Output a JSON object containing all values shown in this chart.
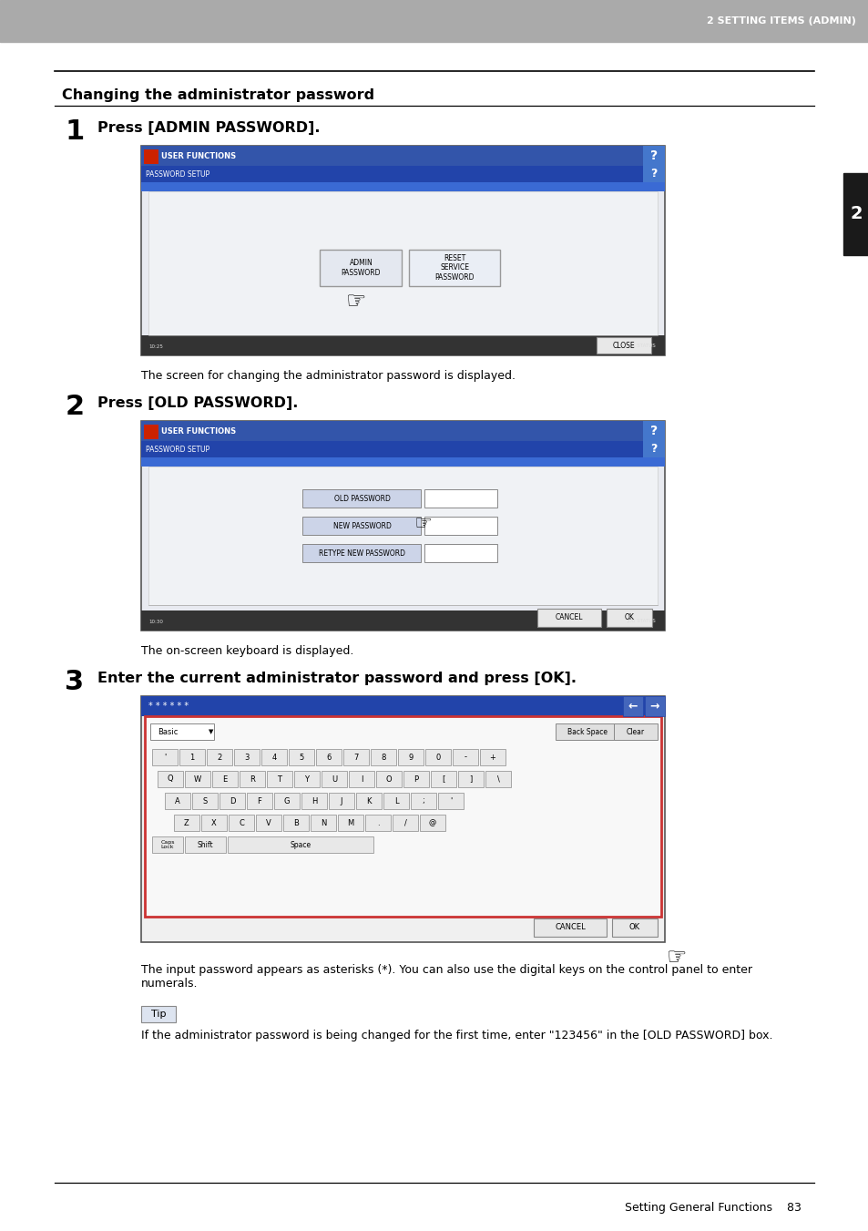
{
  "page_bg": "#ffffff",
  "header_bg": "#aaaaaa",
  "header_text": "2 SETTING ITEMS (ADMIN)",
  "header_text_color": "#ffffff",
  "sidebar_bg": "#1a1a1a",
  "sidebar_text": "2",
  "sidebar_text_color": "#ffffff",
  "title": "Changing the administrator password",
  "steps": [
    {
      "number": "1",
      "instruction": "Press [ADMIN PASSWORD].",
      "caption": "The screen for changing the administrator password is displayed."
    },
    {
      "number": "2",
      "instruction": "Press [OLD PASSWORD].",
      "caption": "The on-screen keyboard is displayed."
    },
    {
      "number": "3",
      "instruction": "Enter the current administrator password and press [OK].",
      "caption": "The input password appears as asterisks (*). You can also use the digital keys on the control panel to enter\nnumerals."
    }
  ],
  "tip_label": "Tip",
  "tip_text": "If the administrator password is being changed for the first time, enter \"123456\" in the [OLD PASSWORD] box.",
  "footer_text": "Setting General Functions    83"
}
